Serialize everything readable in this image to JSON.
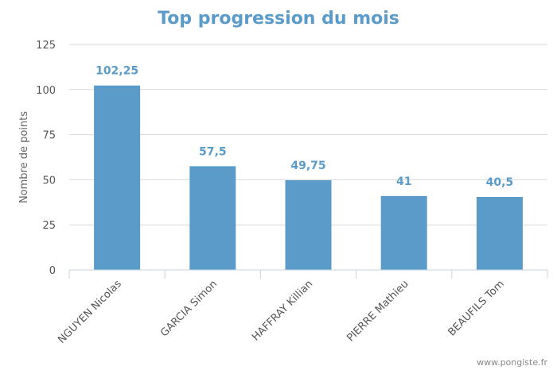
{
  "chart_data": {
    "type": "bar",
    "title": "Top progression du mois",
    "xlabel": "",
    "ylabel": "Nombre de points",
    "categories": [
      "NGUYEN Nicolas",
      "GARCIA Simon",
      "HAFFRAY Killian",
      "PIERRE Mathieu",
      "BEAUFILS Tom"
    ],
    "values": [
      102.25,
      57.5,
      49.75,
      41,
      40.5
    ],
    "data_labels": [
      "102,25",
      "57,5",
      "49,75",
      "41",
      "40,5"
    ],
    "ylim": [
      0,
      125
    ],
    "yticks": [
      0,
      25,
      50,
      75,
      100,
      125
    ],
    "grid": true,
    "legend": "none",
    "bar_color": "#5b9bc9",
    "label_color": "#5b9bc9"
  },
  "credit": "www.pongiste.fr"
}
